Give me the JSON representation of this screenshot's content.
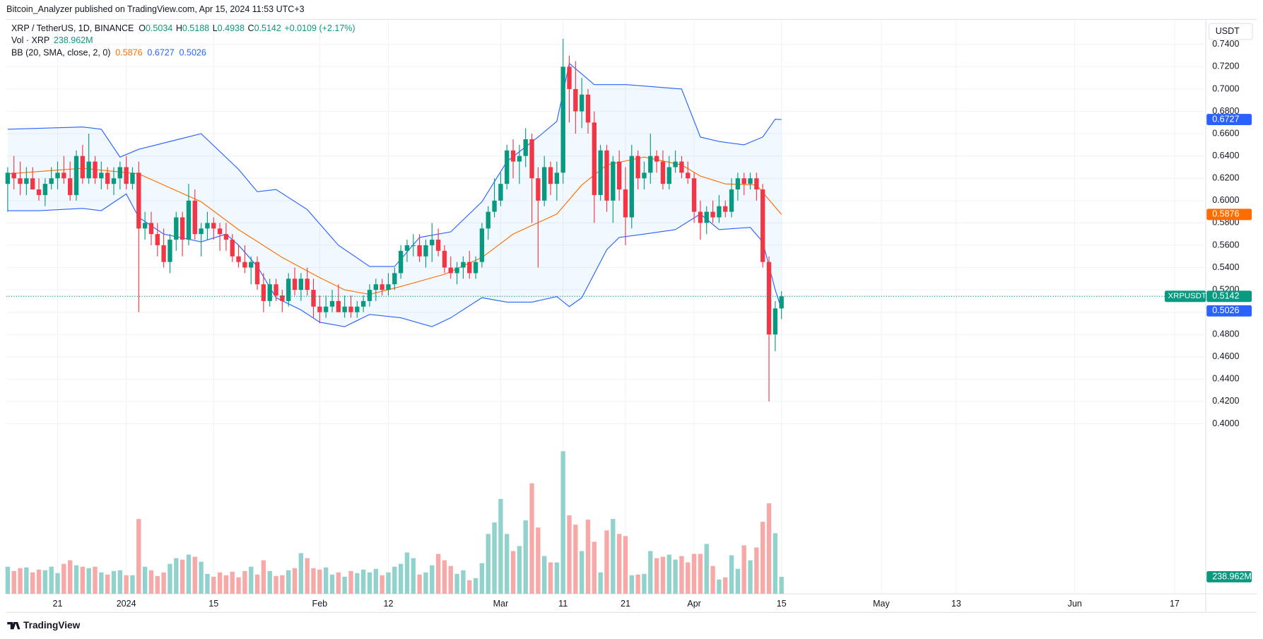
{
  "header": {
    "publisher": "Bitcoin_Analyzer published on TradingView.com, Apr 15, 2024 11:53 UTC+3",
    "logo": "TradingView"
  },
  "chart_data": {
    "type": "candlestick",
    "title": "XRP / TetherUS, 1D, BINANCE",
    "ohlc_prefixes": [
      "O",
      "H",
      "L",
      "C"
    ],
    "change": "+0.0109 (+2.17%)",
    "currency": "USDT",
    "symbol_tag": "XRPUSDT",
    "up_color": "#089981",
    "down_color": "#f23645",
    "grid": true,
    "xlim": [
      -0.2,
      192
    ],
    "ylim": [
      0.2476,
      0.7624
    ],
    "xticks": [
      {
        "value": 8,
        "label": "21"
      },
      {
        "value": 19,
        "label": "2024"
      },
      {
        "value": 33,
        "label": "15"
      },
      {
        "value": 50,
        "label": "Feb"
      },
      {
        "value": 61,
        "label": "12"
      },
      {
        "value": 79,
        "label": "Mar"
      },
      {
        "value": 89,
        "label": "11"
      },
      {
        "value": 99,
        "label": "21"
      },
      {
        "value": 110,
        "label": "Apr"
      },
      {
        "value": 124,
        "label": "15"
      },
      {
        "value": 140,
        "label": "May"
      },
      {
        "value": 152,
        "label": "13"
      },
      {
        "value": 171,
        "label": "Jun"
      },
      {
        "value": 187,
        "label": "17"
      }
    ],
    "yticks": [
      {
        "value": 0.4,
        "label": "0.4000"
      },
      {
        "value": 0.42,
        "label": "0.4200"
      },
      {
        "value": 0.44,
        "label": "0.4400"
      },
      {
        "value": 0.46,
        "label": "0.4600"
      },
      {
        "value": 0.48,
        "label": "0.4800"
      },
      {
        "value": 0.5,
        "label": "0.5000"
      },
      {
        "value": 0.52,
        "label": "0.5200"
      },
      {
        "value": 0.54,
        "label": "0.5400"
      },
      {
        "value": 0.56,
        "label": "0.5600"
      },
      {
        "value": 0.58,
        "label": "0.5800"
      },
      {
        "value": 0.6,
        "label": "0.6000"
      },
      {
        "value": 0.62,
        "label": "0.6200"
      },
      {
        "value": 0.64,
        "label": "0.6400"
      },
      {
        "value": 0.66,
        "label": "0.6600"
      },
      {
        "value": 0.68,
        "label": "0.6800"
      },
      {
        "value": 0.7,
        "label": "0.7000"
      },
      {
        "value": 0.72,
        "label": "0.7200"
      },
      {
        "value": 0.74,
        "label": "0.7400"
      }
    ],
    "candles": [
      [
        0.615,
        0.63,
        0.59,
        0.625
      ],
      [
        0.625,
        0.64,
        0.61,
        0.62
      ],
      [
        0.62,
        0.635,
        0.605,
        0.615
      ],
      [
        0.615,
        0.63,
        0.605,
        0.62
      ],
      [
        0.62,
        0.63,
        0.61,
        0.61
      ],
      [
        0.61,
        0.62,
        0.6,
        0.605
      ],
      [
        0.605,
        0.62,
        0.595,
        0.615
      ],
      [
        0.615,
        0.63,
        0.61,
        0.62
      ],
      [
        0.62,
        0.635,
        0.61,
        0.625
      ],
      [
        0.625,
        0.64,
        0.615,
        0.62
      ],
      [
        0.62,
        0.635,
        0.6,
        0.605
      ],
      [
        0.605,
        0.645,
        0.6,
        0.64
      ],
      [
        0.64,
        0.65,
        0.615,
        0.62
      ],
      [
        0.62,
        0.66,
        0.615,
        0.635
      ],
      [
        0.635,
        0.64,
        0.615,
        0.62
      ],
      [
        0.62,
        0.635,
        0.61,
        0.625
      ],
      [
        0.625,
        0.63,
        0.61,
        0.615
      ],
      [
        0.615,
        0.63,
        0.605,
        0.62
      ],
      [
        0.62,
        0.635,
        0.61,
        0.63
      ],
      [
        0.63,
        0.64,
        0.61,
        0.615
      ],
      [
        0.615,
        0.63,
        0.61,
        0.625
      ],
      [
        0.625,
        0.635,
        0.5,
        0.575
      ],
      [
        0.575,
        0.59,
        0.565,
        0.58
      ],
      [
        0.58,
        0.59,
        0.56,
        0.57
      ],
      [
        0.57,
        0.58,
        0.55,
        0.56
      ],
      [
        0.56,
        0.575,
        0.54,
        0.545
      ],
      [
        0.545,
        0.57,
        0.535,
        0.565
      ],
      [
        0.565,
        0.59,
        0.555,
        0.585
      ],
      [
        0.585,
        0.59,
        0.55,
        0.565
      ],
      [
        0.565,
        0.615,
        0.56,
        0.6
      ],
      [
        0.6,
        0.61,
        0.565,
        0.57
      ],
      [
        0.57,
        0.58,
        0.55,
        0.575
      ],
      [
        0.575,
        0.59,
        0.565,
        0.58
      ],
      [
        0.58,
        0.585,
        0.565,
        0.575
      ],
      [
        0.575,
        0.58,
        0.555,
        0.57
      ],
      [
        0.57,
        0.58,
        0.555,
        0.565
      ],
      [
        0.565,
        0.57,
        0.545,
        0.55
      ],
      [
        0.55,
        0.56,
        0.54,
        0.545
      ],
      [
        0.545,
        0.56,
        0.535,
        0.54
      ],
      [
        0.54,
        0.55,
        0.525,
        0.545
      ],
      [
        0.545,
        0.55,
        0.52,
        0.525
      ],
      [
        0.525,
        0.535,
        0.5,
        0.51
      ],
      [
        0.51,
        0.53,
        0.505,
        0.525
      ],
      [
        0.525,
        0.53,
        0.51,
        0.515
      ],
      [
        0.515,
        0.52,
        0.5,
        0.51
      ],
      [
        0.51,
        0.535,
        0.505,
        0.53
      ],
      [
        0.53,
        0.54,
        0.515,
        0.52
      ],
      [
        0.52,
        0.535,
        0.51,
        0.53
      ],
      [
        0.53,
        0.54,
        0.515,
        0.52
      ],
      [
        0.52,
        0.53,
        0.495,
        0.505
      ],
      [
        0.505,
        0.515,
        0.49,
        0.5
      ],
      [
        0.5,
        0.515,
        0.495,
        0.505
      ],
      [
        0.505,
        0.52,
        0.5,
        0.51
      ],
      [
        0.51,
        0.525,
        0.5,
        0.5
      ],
      [
        0.5,
        0.515,
        0.495,
        0.505
      ],
      [
        0.505,
        0.515,
        0.495,
        0.5
      ],
      [
        0.5,
        0.51,
        0.495,
        0.505
      ],
      [
        0.505,
        0.515,
        0.5,
        0.51
      ],
      [
        0.51,
        0.525,
        0.505,
        0.52
      ],
      [
        0.52,
        0.53,
        0.51,
        0.525
      ],
      [
        0.525,
        0.53,
        0.515,
        0.52
      ],
      [
        0.52,
        0.535,
        0.515,
        0.525
      ],
      [
        0.525,
        0.54,
        0.52,
        0.535
      ],
      [
        0.535,
        0.56,
        0.53,
        0.555
      ],
      [
        0.555,
        0.565,
        0.545,
        0.56
      ],
      [
        0.56,
        0.57,
        0.55,
        0.56
      ],
      [
        0.56,
        0.57,
        0.545,
        0.55
      ],
      [
        0.55,
        0.565,
        0.54,
        0.56
      ],
      [
        0.56,
        0.58,
        0.545,
        0.565
      ],
      [
        0.565,
        0.575,
        0.55,
        0.555
      ],
      [
        0.555,
        0.56,
        0.535,
        0.54
      ],
      [
        0.54,
        0.55,
        0.53,
        0.535
      ],
      [
        0.535,
        0.545,
        0.525,
        0.54
      ],
      [
        0.54,
        0.55,
        0.53,
        0.545
      ],
      [
        0.545,
        0.555,
        0.53,
        0.535
      ],
      [
        0.535,
        0.55,
        0.53,
        0.545
      ],
      [
        0.545,
        0.58,
        0.54,
        0.575
      ],
      [
        0.575,
        0.595,
        0.565,
        0.59
      ],
      [
        0.59,
        0.62,
        0.585,
        0.6
      ],
      [
        0.6,
        0.625,
        0.595,
        0.615
      ],
      [
        0.615,
        0.65,
        0.61,
        0.645
      ],
      [
        0.645,
        0.655,
        0.62,
        0.635
      ],
      [
        0.635,
        0.65,
        0.615,
        0.64
      ],
      [
        0.64,
        0.665,
        0.63,
        0.655
      ],
      [
        0.655,
        0.66,
        0.58,
        0.62
      ],
      [
        0.62,
        0.63,
        0.54,
        0.6
      ],
      [
        0.6,
        0.64,
        0.595,
        0.63
      ],
      [
        0.63,
        0.635,
        0.605,
        0.615
      ],
      [
        0.615,
        0.635,
        0.6,
        0.625
      ],
      [
        0.625,
        0.745,
        0.615,
        0.72
      ],
      [
        0.72,
        0.73,
        0.67,
        0.7
      ],
      [
        0.7,
        0.725,
        0.66,
        0.68
      ],
      [
        0.68,
        0.71,
        0.665,
        0.695
      ],
      [
        0.695,
        0.7,
        0.66,
        0.67
      ],
      [
        0.67,
        0.68,
        0.58,
        0.605
      ],
      [
        0.605,
        0.65,
        0.6,
        0.645
      ],
      [
        0.645,
        0.65,
        0.59,
        0.6
      ],
      [
        0.6,
        0.64,
        0.58,
        0.635
      ],
      [
        0.635,
        0.645,
        0.6,
        0.61
      ],
      [
        0.61,
        0.63,
        0.56,
        0.585
      ],
      [
        0.585,
        0.65,
        0.575,
        0.64
      ],
      [
        0.64,
        0.645,
        0.61,
        0.62
      ],
      [
        0.62,
        0.635,
        0.61,
        0.625
      ],
      [
        0.625,
        0.66,
        0.615,
        0.64
      ],
      [
        0.64,
        0.645,
        0.625,
        0.635
      ],
      [
        0.635,
        0.645,
        0.61,
        0.615
      ],
      [
        0.615,
        0.64,
        0.61,
        0.63
      ],
      [
        0.63,
        0.645,
        0.625,
        0.635
      ],
      [
        0.635,
        0.64,
        0.62,
        0.625
      ],
      [
        0.625,
        0.635,
        0.615,
        0.62
      ],
      [
        0.62,
        0.625,
        0.58,
        0.59
      ],
      [
        0.59,
        0.6,
        0.565,
        0.58
      ],
      [
        0.58,
        0.595,
        0.57,
        0.59
      ],
      [
        0.59,
        0.6,
        0.58,
        0.585
      ],
      [
        0.585,
        0.605,
        0.58,
        0.595
      ],
      [
        0.595,
        0.6,
        0.585,
        0.59
      ],
      [
        0.59,
        0.62,
        0.585,
        0.61
      ],
      [
        0.61,
        0.625,
        0.6,
        0.62
      ],
      [
        0.62,
        0.625,
        0.605,
        0.615
      ],
      [
        0.615,
        0.625,
        0.61,
        0.62
      ],
      [
        0.62,
        0.625,
        0.6,
        0.61
      ],
      [
        0.61,
        0.615,
        0.54,
        0.545
      ],
      [
        0.545,
        0.55,
        0.42,
        0.48
      ],
      [
        0.48,
        0.51,
        0.465,
        0.5034
      ],
      [
        0.5034,
        0.5188,
        0.4938,
        0.5142
      ]
    ],
    "volume": {
      "name": "Vol · XRP",
      "up_color": "#92d2cc",
      "down_color": "#f7a9a7",
      "last_label": "238.962M",
      "values": [
        380,
        320,
        360,
        370,
        300,
        340,
        330,
        380,
        290,
        420,
        470,
        400,
        380,
        360,
        380,
        300,
        270,
        320,
        330,
        260,
        260,
        1050,
        380,
        330,
        250,
        300,
        420,
        500,
        480,
        550,
        520,
        450,
        280,
        240,
        300,
        260,
        310,
        230,
        320,
        380,
        270,
        470,
        320,
        250,
        260,
        330,
        360,
        570,
        500,
        360,
        340,
        370,
        270,
        300,
        240,
        320,
        290,
        340,
        300,
        350,
        260,
        300,
        380,
        420,
        580,
        500,
        270,
        300,
        400,
        560,
        470,
        390,
        280,
        330,
        190,
        220,
        430,
        840,
        1000,
        1330,
        840,
        600,
        670,
        1030,
        1550,
        930,
        530,
        440,
        440,
        2000,
        1100,
        970,
        600,
        1040,
        730,
        300,
        890,
        1050,
        840,
        810,
        260,
        270,
        280,
        600,
        500,
        520,
        550,
        480,
        530,
        440,
        560,
        560,
        700,
        390,
        200,
        230,
        540,
        350,
        680,
        470,
        650,
        1010,
        1270,
        850,
        238.962
      ]
    },
    "bb": {
      "name": "BB (20, SMA, close, 2, 0)",
      "basis": {
        "color": "#ff6d00",
        "x": [
          0,
          12,
          21,
          25,
          31,
          37,
          44,
          50,
          54,
          58,
          63,
          70,
          76,
          81,
          88,
          92,
          96,
          102,
          108,
          111,
          115,
          120,
          124
        ],
        "values": [
          0.624,
          0.629,
          0.624,
          0.614,
          0.599,
          0.574,
          0.549,
          0.531,
          0.52,
          0.516,
          0.523,
          0.534,
          0.549,
          0.57,
          0.588,
          0.614,
          0.632,
          0.639,
          0.632,
          0.622,
          0.615,
          0.614,
          0.5876
        ]
      },
      "upper": {
        "color": "#2962ff",
        "x": [
          0,
          12,
          15,
          18,
          21,
          31,
          37,
          40,
          43,
          48,
          53,
          58,
          62,
          66,
          71,
          76,
          80,
          85,
          88,
          90,
          94,
          99,
          108,
          111,
          114,
          118,
          121,
          123,
          124
        ],
        "values": [
          0.664,
          0.666,
          0.664,
          0.639,
          0.646,
          0.66,
          0.628,
          0.608,
          0.61,
          0.592,
          0.56,
          0.541,
          0.541,
          0.567,
          0.572,
          0.599,
          0.635,
          0.657,
          0.671,
          0.723,
          0.704,
          0.704,
          0.7,
          0.657,
          0.653,
          0.65,
          0.657,
          0.673,
          0.6727
        ]
      },
      "lower": {
        "color": "#2962ff",
        "x": [
          0,
          5,
          12,
          15,
          19,
          21,
          25,
          31,
          35,
          37,
          40,
          43,
          47,
          50,
          54,
          58,
          63,
          68,
          71,
          76,
          80,
          84,
          88,
          90,
          92,
          96,
          98,
          102,
          107,
          111,
          114,
          119,
          121,
          123,
          124
        ],
        "values": [
          0.591,
          0.591,
          0.593,
          0.591,
          0.606,
          0.585,
          0.57,
          0.563,
          0.57,
          0.56,
          0.541,
          0.513,
          0.502,
          0.491,
          0.487,
          0.498,
          0.495,
          0.487,
          0.495,
          0.513,
          0.509,
          0.509,
          0.514,
          0.505,
          0.513,
          0.556,
          0.567,
          0.57,
          0.574,
          0.588,
          0.574,
          0.576,
          0.563,
          0.52,
          0.5026
        ]
      }
    }
  }
}
